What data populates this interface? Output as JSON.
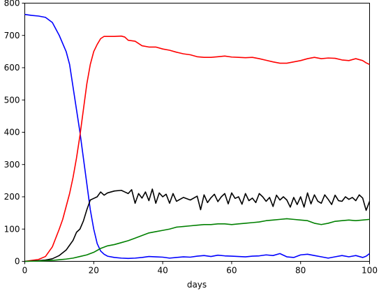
{
  "chart_data": {
    "type": "line",
    "title": "",
    "xlabel": "days",
    "ylabel": "",
    "xlim": [
      0,
      100
    ],
    "ylim": [
      0,
      800
    ],
    "x_ticks": [
      0,
      20,
      40,
      60,
      80,
      100
    ],
    "y_ticks": [
      0,
      100,
      200,
      300,
      400,
      500,
      600,
      700,
      800
    ],
    "grid": false,
    "legend": "none",
    "series": [
      {
        "color": "#0000ff",
        "points": [
          [
            0,
            765
          ],
          [
            2,
            762
          ],
          [
            4,
            760
          ],
          [
            6,
            756
          ],
          [
            8,
            740
          ],
          [
            10,
            700
          ],
          [
            12,
            650
          ],
          [
            13,
            610
          ],
          [
            14,
            540
          ],
          [
            15,
            470
          ],
          [
            16,
            400
          ],
          [
            17,
            320
          ],
          [
            18,
            240
          ],
          [
            19,
            160
          ],
          [
            20,
            100
          ],
          [
            21,
            55
          ],
          [
            22,
            32
          ],
          [
            23,
            22
          ],
          [
            24,
            16
          ],
          [
            26,
            12
          ],
          [
            28,
            10
          ],
          [
            30,
            9
          ],
          [
            32,
            10
          ],
          [
            34,
            12
          ],
          [
            36,
            15
          ],
          [
            38,
            14
          ],
          [
            40,
            13
          ],
          [
            42,
            10
          ],
          [
            44,
            12
          ],
          [
            46,
            14
          ],
          [
            48,
            13
          ],
          [
            50,
            16
          ],
          [
            52,
            18
          ],
          [
            54,
            15
          ],
          [
            56,
            19
          ],
          [
            58,
            17
          ],
          [
            60,
            16
          ],
          [
            62,
            15
          ],
          [
            64,
            14
          ],
          [
            66,
            16
          ],
          [
            68,
            17
          ],
          [
            70,
            20
          ],
          [
            72,
            18
          ],
          [
            74,
            24
          ],
          [
            76,
            14
          ],
          [
            78,
            12
          ],
          [
            80,
            20
          ],
          [
            82,
            22
          ],
          [
            84,
            18
          ],
          [
            86,
            14
          ],
          [
            88,
            10
          ],
          [
            90,
            14
          ],
          [
            92,
            18
          ],
          [
            94,
            14
          ],
          [
            96,
            18
          ],
          [
            98,
            12
          ],
          [
            99,
            16
          ],
          [
            100,
            24
          ]
        ]
      },
      {
        "color": "#ff0000",
        "points": [
          [
            0,
            0
          ],
          [
            2,
            3
          ],
          [
            4,
            6
          ],
          [
            6,
            15
          ],
          [
            8,
            45
          ],
          [
            10,
            100
          ],
          [
            11,
            130
          ],
          [
            12,
            170
          ],
          [
            13,
            210
          ],
          [
            14,
            260
          ],
          [
            15,
            320
          ],
          [
            16,
            390
          ],
          [
            17,
            470
          ],
          [
            18,
            550
          ],
          [
            19,
            610
          ],
          [
            20,
            650
          ],
          [
            21,
            672
          ],
          [
            22,
            690
          ],
          [
            23,
            697
          ],
          [
            24,
            697
          ],
          [
            26,
            697
          ],
          [
            28,
            698
          ],
          [
            29,
            695
          ],
          [
            30,
            685
          ],
          [
            32,
            682
          ],
          [
            34,
            668
          ],
          [
            36,
            664
          ],
          [
            38,
            664
          ],
          [
            40,
            658
          ],
          [
            42,
            654
          ],
          [
            44,
            648
          ],
          [
            46,
            643
          ],
          [
            48,
            640
          ],
          [
            50,
            634
          ],
          [
            52,
            632
          ],
          [
            54,
            632
          ],
          [
            56,
            634
          ],
          [
            58,
            636
          ],
          [
            60,
            633
          ],
          [
            62,
            632
          ],
          [
            64,
            631
          ],
          [
            66,
            632
          ],
          [
            68,
            628
          ],
          [
            70,
            623
          ],
          [
            72,
            618
          ],
          [
            74,
            614
          ],
          [
            76,
            614
          ],
          [
            78,
            618
          ],
          [
            80,
            622
          ],
          [
            82,
            628
          ],
          [
            84,
            632
          ],
          [
            86,
            628
          ],
          [
            88,
            630
          ],
          [
            90,
            629
          ],
          [
            92,
            624
          ],
          [
            94,
            622
          ],
          [
            96,
            628
          ],
          [
            98,
            622
          ],
          [
            99,
            615
          ],
          [
            100,
            610
          ]
        ]
      },
      {
        "color": "#000000",
        "points": [
          [
            0,
            0
          ],
          [
            2,
            1
          ],
          [
            4,
            2
          ],
          [
            6,
            4
          ],
          [
            8,
            8
          ],
          [
            10,
            18
          ],
          [
            12,
            35
          ],
          [
            13,
            50
          ],
          [
            14,
            65
          ],
          [
            15,
            90
          ],
          [
            16,
            100
          ],
          [
            17,
            125
          ],
          [
            18,
            160
          ],
          [
            19,
            190
          ],
          [
            20,
            195
          ],
          [
            21,
            200
          ],
          [
            22,
            215
          ],
          [
            23,
            205
          ],
          [
            24,
            212
          ],
          [
            26,
            218
          ],
          [
            28,
            220
          ],
          [
            29,
            215
          ],
          [
            30,
            210
          ],
          [
            31,
            222
          ],
          [
            32,
            180
          ],
          [
            33,
            210
          ],
          [
            34,
            196
          ],
          [
            35,
            215
          ],
          [
            36,
            188
          ],
          [
            37,
            224
          ],
          [
            38,
            180
          ],
          [
            39,
            212
          ],
          [
            40,
            200
          ],
          [
            41,
            208
          ],
          [
            42,
            180
          ],
          [
            43,
            210
          ],
          [
            44,
            186
          ],
          [
            46,
            198
          ],
          [
            48,
            190
          ],
          [
            50,
            202
          ],
          [
            51,
            160
          ],
          [
            52,
            206
          ],
          [
            53,
            182
          ],
          [
            54,
            197
          ],
          [
            55,
            208
          ],
          [
            56,
            185
          ],
          [
            57,
            200
          ],
          [
            58,
            210
          ],
          [
            59,
            178
          ],
          [
            60,
            212
          ],
          [
            61,
            195
          ],
          [
            62,
            200
          ],
          [
            63,
            177
          ],
          [
            64,
            210
          ],
          [
            65,
            188
          ],
          [
            66,
            196
          ],
          [
            67,
            182
          ],
          [
            68,
            210
          ],
          [
            69,
            200
          ],
          [
            70,
            186
          ],
          [
            71,
            198
          ],
          [
            72,
            170
          ],
          [
            73,
            205
          ],
          [
            74,
            190
          ],
          [
            75,
            200
          ],
          [
            76,
            190
          ],
          [
            77,
            168
          ],
          [
            78,
            198
          ],
          [
            79,
            176
          ],
          [
            80,
            200
          ],
          [
            81,
            168
          ],
          [
            82,
            212
          ],
          [
            83,
            178
          ],
          [
            84,
            206
          ],
          [
            85,
            186
          ],
          [
            86,
            180
          ],
          [
            87,
            206
          ],
          [
            88,
            192
          ],
          [
            89,
            176
          ],
          [
            90,
            205
          ],
          [
            91,
            188
          ],
          [
            92,
            186
          ],
          [
            93,
            200
          ],
          [
            94,
            192
          ],
          [
            95,
            198
          ],
          [
            96,
            188
          ],
          [
            97,
            206
          ],
          [
            98,
            196
          ],
          [
            99,
            158
          ],
          [
            100,
            186
          ]
        ]
      },
      {
        "color": "#008000",
        "points": [
          [
            0,
            0
          ],
          [
            4,
            1
          ],
          [
            6,
            2
          ],
          [
            8,
            3
          ],
          [
            10,
            5
          ],
          [
            12,
            7
          ],
          [
            14,
            10
          ],
          [
            16,
            15
          ],
          [
            18,
            20
          ],
          [
            20,
            28
          ],
          [
            22,
            40
          ],
          [
            24,
            48
          ],
          [
            26,
            52
          ],
          [
            28,
            58
          ],
          [
            30,
            64
          ],
          [
            32,
            72
          ],
          [
            34,
            80
          ],
          [
            36,
            88
          ],
          [
            38,
            92
          ],
          [
            40,
            96
          ],
          [
            42,
            100
          ],
          [
            44,
            106
          ],
          [
            46,
            108
          ],
          [
            48,
            110
          ],
          [
            50,
            112
          ],
          [
            52,
            114
          ],
          [
            54,
            114
          ],
          [
            56,
            116
          ],
          [
            58,
            116
          ],
          [
            60,
            114
          ],
          [
            62,
            116
          ],
          [
            64,
            118
          ],
          [
            66,
            120
          ],
          [
            68,
            122
          ],
          [
            70,
            126
          ],
          [
            72,
            128
          ],
          [
            74,
            130
          ],
          [
            76,
            132
          ],
          [
            78,
            130
          ],
          [
            80,
            128
          ],
          [
            82,
            126
          ],
          [
            84,
            118
          ],
          [
            86,
            114
          ],
          [
            88,
            118
          ],
          [
            90,
            124
          ],
          [
            92,
            126
          ],
          [
            94,
            128
          ],
          [
            96,
            126
          ],
          [
            98,
            128
          ],
          [
            100,
            130
          ]
        ]
      }
    ]
  }
}
